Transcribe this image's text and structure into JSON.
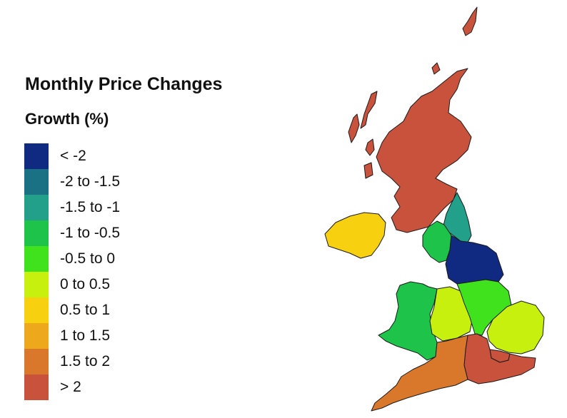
{
  "legend": {
    "title": "Monthly Price Changes",
    "subtitle": "Growth (%)",
    "bins": [
      {
        "label": "< -2",
        "color": "#0f2a80"
      },
      {
        "label": "-2 to -1.5",
        "color": "#1b7184"
      },
      {
        "label": "-1.5 to -1",
        "color": "#23a08a"
      },
      {
        "label": "-1 to -0.5",
        "color": "#1ec44a"
      },
      {
        "label": "-0.5 to 0",
        "color": "#3fe21c"
      },
      {
        "label": "0 to 0.5",
        "color": "#c8f00e"
      },
      {
        "label": "0.5 to 1",
        "color": "#f7d10f"
      },
      {
        "label": "1 to 1.5",
        "color": "#eda81b"
      },
      {
        "label": "1.5 to 2",
        "color": "#d9782b"
      },
      {
        "label": "> 2",
        "color": "#c8523b"
      }
    ]
  },
  "map": {
    "regions": [
      {
        "name": "scotland",
        "color": "#c8523b"
      },
      {
        "name": "northern-ireland",
        "color": "#f7d10f"
      },
      {
        "name": "north-east",
        "color": "#23a08a"
      },
      {
        "name": "north-west",
        "color": "#1ec44a"
      },
      {
        "name": "yorkshire-and-the-humber",
        "color": "#0f2a80"
      },
      {
        "name": "wales",
        "color": "#1ec44a"
      },
      {
        "name": "west-midlands",
        "color": "#c8f00e"
      },
      {
        "name": "east-midlands",
        "color": "#3fe21c"
      },
      {
        "name": "east-of-england",
        "color": "#c8f00e"
      },
      {
        "name": "london",
        "color": "#c8523b"
      },
      {
        "name": "south-east",
        "color": "#c8523b"
      },
      {
        "name": "south-west",
        "color": "#d9782b"
      }
    ]
  }
}
